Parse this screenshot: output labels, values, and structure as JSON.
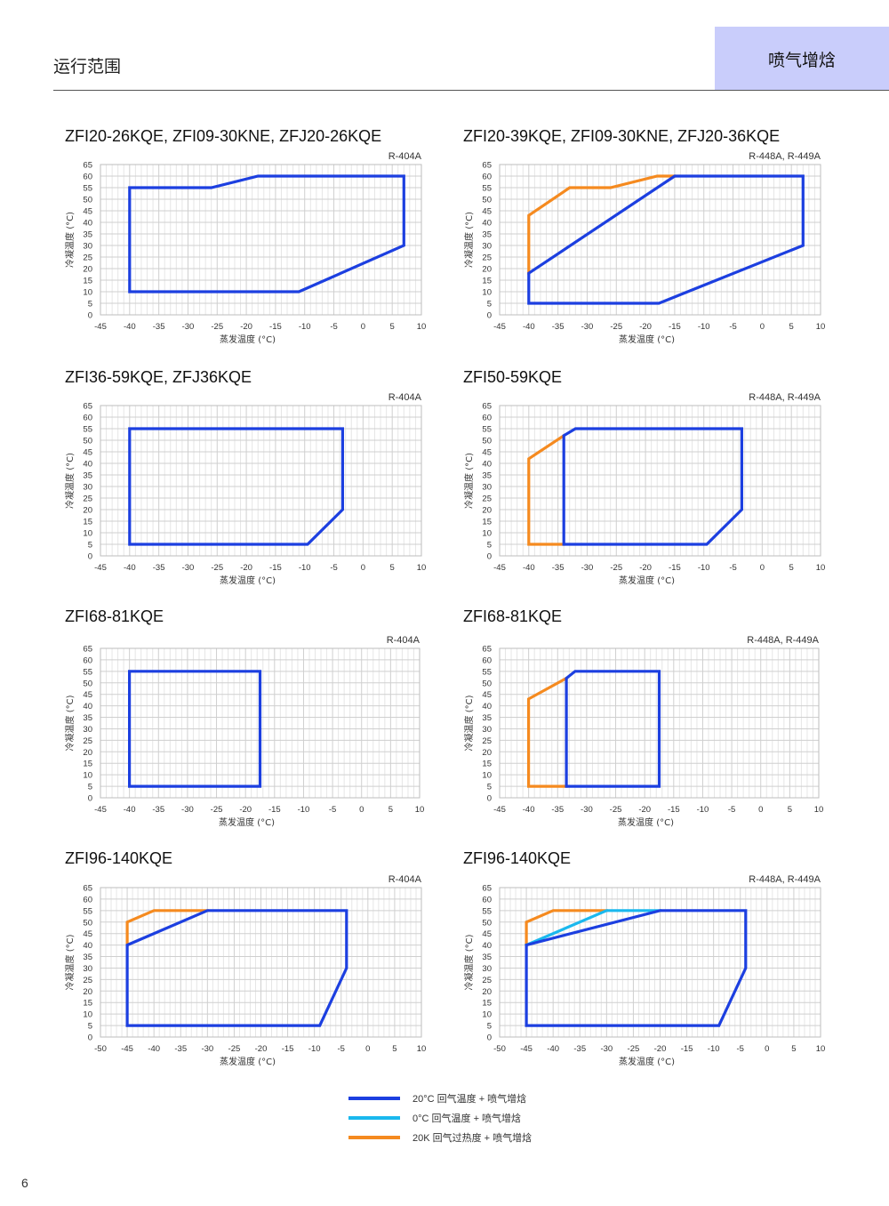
{
  "header": {
    "title": "运行范围",
    "tab": "喷气增焓"
  },
  "page_number": "6",
  "colors": {
    "blue": "#1c3fe0",
    "cyan": "#1ab8ee",
    "orange": "#f58a1f",
    "grid": "#d4d4d4",
    "header_tab": "#c9cdfb"
  },
  "legend": [
    {
      "label": "20°C 回气温度 + 喷气增焓",
      "color": "#1c3fe0"
    },
    {
      "label": "0°C 回气温度 + 喷气增焓",
      "color": "#1ab8ee"
    },
    {
      "label": "20K 回气过热度 + 喷气增焓",
      "color": "#f58a1f"
    }
  ],
  "chart_data": [
    {
      "type": "line",
      "title": "ZFI20-26KQE, ZFI09-30KNE, ZFJ20-26KQE",
      "refrigerant": "R-404A",
      "xlabel": "蒸发温度 (°C)",
      "ylabel": "冷凝温度 (°C)",
      "xlim": [
        -45,
        10
      ],
      "ylim": [
        0,
        65
      ],
      "xticks": [
        "-45",
        "-40",
        "-35",
        "-30",
        "-25",
        "-20",
        "-15",
        "-10",
        "-5",
        "0",
        "5",
        "10"
      ],
      "yticks": [
        "0",
        "5",
        "10",
        "15",
        "20",
        "25",
        "30",
        "35",
        "40",
        "45",
        "50",
        "55",
        "60",
        "65"
      ],
      "grid": true,
      "series": [
        {
          "color": "blue",
          "points": [
            [
              -40,
              10
            ],
            [
              -11,
              10
            ],
            [
              7,
              30
            ],
            [
              7,
              60
            ],
            [
              -18,
              60
            ],
            [
              -26,
              55
            ],
            [
              -40,
              55
            ],
            [
              -40,
              10
            ]
          ]
        }
      ]
    },
    {
      "type": "line",
      "title": "ZFI20-39KQE, ZFI09-30KNE, ZFJ20-36KQE",
      "refrigerant": "R-448A, R-449A",
      "xlabel": "蒸发温度 (°C)",
      "ylabel": "冷凝温度 (°C)",
      "xlim": [
        -45,
        10
      ],
      "ylim": [
        0,
        65
      ],
      "xticks": [
        "-45",
        "-40",
        "-35",
        "-30",
        "-25",
        "-20",
        "-15",
        "-10",
        "-5",
        "0",
        "5",
        "10"
      ],
      "yticks": [
        "0",
        "5",
        "10",
        "15",
        "20",
        "25",
        "30",
        "35",
        "40",
        "45",
        "50",
        "55",
        "60",
        "65"
      ],
      "grid": true,
      "series": [
        {
          "color": "orange",
          "points": [
            [
              -40,
              18
            ],
            [
              -40,
              43
            ],
            [
              -33,
              55
            ],
            [
              -26,
              55
            ],
            [
              -18,
              60
            ],
            [
              -15,
              60
            ]
          ]
        },
        {
          "color": "blue",
          "points": [
            [
              -40,
              5
            ],
            [
              -17.7,
              5
            ],
            [
              7,
              30
            ],
            [
              7,
              60
            ],
            [
              -15,
              60
            ],
            [
              -40,
              18
            ],
            [
              -40,
              5
            ]
          ]
        }
      ]
    },
    {
      "type": "line",
      "title": "ZFI36-59KQE, ZFJ36KQE",
      "refrigerant": "R-404A",
      "xlabel": "蒸发温度 (°C)",
      "ylabel": "冷凝温度 (°C)",
      "xlim": [
        -45,
        10
      ],
      "ylim": [
        0,
        65
      ],
      "xticks": [
        "-45",
        "-40",
        "-35",
        "-30",
        "-25",
        "-20",
        "-15",
        "-10",
        "-5",
        "0",
        "5",
        "10"
      ],
      "yticks": [
        "0",
        "5",
        "10",
        "15",
        "20",
        "25",
        "30",
        "35",
        "40",
        "45",
        "50",
        "55",
        "60",
        "65"
      ],
      "grid": true,
      "series": [
        {
          "color": "blue",
          "points": [
            [
              -40,
              5
            ],
            [
              -9.5,
              5
            ],
            [
              -3.5,
              20
            ],
            [
              -3.5,
              55
            ],
            [
              -40,
              55
            ],
            [
              -40,
              5
            ]
          ]
        }
      ]
    },
    {
      "type": "line",
      "title": "ZFI50-59KQE",
      "refrigerant": "R-448A, R-449A",
      "xlabel": "蒸发温度 (°C)",
      "ylabel": "冷凝温度 (°C)",
      "xlim": [
        -45,
        10
      ],
      "ylim": [
        0,
        65
      ],
      "xticks": [
        "-45",
        "-40",
        "-35",
        "-30",
        "-25",
        "-20",
        "-15",
        "-10",
        "-5",
        "0",
        "5",
        "10"
      ],
      "yticks": [
        "0",
        "5",
        "10",
        "15",
        "20",
        "25",
        "30",
        "35",
        "40",
        "45",
        "50",
        "55",
        "60",
        "65"
      ],
      "grid": true,
      "series": [
        {
          "color": "orange",
          "points": [
            [
              -34,
              52
            ],
            [
              -40,
              42
            ],
            [
              -40,
              5
            ],
            [
              -34,
              5
            ]
          ]
        },
        {
          "color": "blue",
          "points": [
            [
              -34,
              5
            ],
            [
              -9.5,
              5
            ],
            [
              -3.5,
              20
            ],
            [
              -3.5,
              55
            ],
            [
              -32,
              55
            ],
            [
              -34,
              52
            ],
            [
              -34,
              5
            ]
          ]
        }
      ]
    },
    {
      "type": "line",
      "title": "ZFI68-81KQE",
      "refrigerant": "R-404A",
      "xlabel": "蒸发温度 (°C)",
      "ylabel": "冷凝温度 (°C)",
      "xlim": [
        -45,
        10
      ],
      "ylim": [
        0,
        65
      ],
      "xticks": [
        "-45",
        "-40",
        "-35",
        "-30",
        "-25",
        "-20",
        "-15",
        "-10",
        "-5",
        "0",
        "5",
        "10"
      ],
      "yticks": [
        "0",
        "5",
        "10",
        "15",
        "20",
        "25",
        "30",
        "35",
        "40",
        "45",
        "50",
        "55",
        "60",
        "65"
      ],
      "grid": true,
      "series": [
        {
          "color": "blue",
          "points": [
            [
              -40,
              5
            ],
            [
              -17.5,
              5
            ],
            [
              -17.5,
              55
            ],
            [
              -40,
              55
            ],
            [
              -40,
              5
            ]
          ]
        }
      ]
    },
    {
      "type": "line",
      "title": "ZFI68-81KQE",
      "refrigerant": "R-448A, R-449A",
      "xlabel": "蒸发温度 (°C)",
      "ylabel": "冷凝温度 (°C)",
      "xlim": [
        -45,
        10
      ],
      "ylim": [
        0,
        65
      ],
      "xticks": [
        "-45",
        "-40",
        "-35",
        "-30",
        "-25",
        "-20",
        "-15",
        "-10",
        "-5",
        "0",
        "5",
        "10"
      ],
      "yticks": [
        "0",
        "5",
        "10",
        "15",
        "20",
        "25",
        "30",
        "35",
        "40",
        "45",
        "50",
        "55",
        "60",
        "65"
      ],
      "grid": true,
      "series": [
        {
          "color": "orange",
          "points": [
            [
              -33.5,
              52
            ],
            [
              -40,
              43
            ],
            [
              -40,
              5
            ],
            [
              -33.5,
              5
            ]
          ]
        },
        {
          "color": "blue",
          "points": [
            [
              -33.5,
              5
            ],
            [
              -17.5,
              5
            ],
            [
              -17.5,
              55
            ],
            [
              -32,
              55
            ],
            [
              -33.5,
              52
            ],
            [
              -33.5,
              5
            ]
          ]
        }
      ]
    },
    {
      "type": "line",
      "title": "ZFI96-140KQE",
      "refrigerant": "R-404A",
      "xlabel": "蒸发温度 (°C)",
      "ylabel": "冷凝温度 (°C)",
      "xlim": [
        -50,
        10
      ],
      "ylim": [
        0,
        65
      ],
      "xticks": [
        "-50",
        "-45",
        "-40",
        "-35",
        "-30",
        "-25",
        "-20",
        "-15",
        "-10",
        "-5",
        "0",
        "5",
        "10"
      ],
      "yticks": [
        "0",
        "5",
        "10",
        "15",
        "20",
        "25",
        "30",
        "35",
        "40",
        "45",
        "50",
        "55",
        "60",
        "65"
      ],
      "grid": true,
      "series": [
        {
          "color": "orange",
          "points": [
            [
              -45,
              40
            ],
            [
              -45,
              50
            ],
            [
              -40,
              55
            ],
            [
              -30,
              55
            ]
          ]
        },
        {
          "color": "blue",
          "points": [
            [
              -45,
              5
            ],
            [
              -9,
              5
            ],
            [
              -4,
              30
            ],
            [
              -4,
              55
            ],
            [
              -30,
              55
            ],
            [
              -45,
              40
            ],
            [
              -45,
              5
            ]
          ]
        }
      ]
    },
    {
      "type": "line",
      "title": "ZFI96-140KQE",
      "refrigerant": "R-448A, R-449A",
      "xlabel": "蒸发温度 (°C)",
      "ylabel": "冷凝温度 (°C)",
      "xlim": [
        -50,
        10
      ],
      "ylim": [
        0,
        65
      ],
      "xticks": [
        "-50",
        "-45",
        "-40",
        "-35",
        "-30",
        "-25",
        "-20",
        "-15",
        "-10",
        "-5",
        "0",
        "5",
        "10"
      ],
      "yticks": [
        "0",
        "5",
        "10",
        "15",
        "20",
        "25",
        "30",
        "35",
        "40",
        "45",
        "50",
        "55",
        "60",
        "65"
      ],
      "grid": true,
      "series": [
        {
          "color": "orange",
          "points": [
            [
              -45,
              40
            ],
            [
              -45,
              50
            ],
            [
              -40,
              55
            ],
            [
              -30,
              55
            ]
          ]
        },
        {
          "color": "cyan",
          "points": [
            [
              -45,
              40
            ],
            [
              -30,
              55
            ],
            [
              -20,
              55
            ]
          ]
        },
        {
          "color": "blue",
          "points": [
            [
              -45,
              5
            ],
            [
              -9,
              5
            ],
            [
              -4,
              30
            ],
            [
              -4,
              55
            ],
            [
              -20,
              55
            ],
            [
              -45,
              40
            ],
            [
              -45,
              5
            ]
          ]
        }
      ]
    }
  ]
}
